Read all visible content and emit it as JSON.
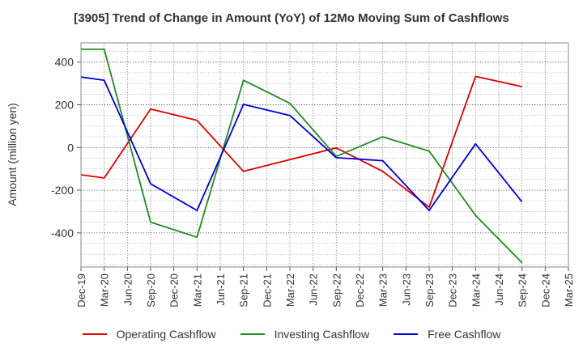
{
  "chart_data": {
    "type": "line",
    "title": "[3905]  Trend of Change in Amount (YoY) of 12Mo Moving Sum of Cashflows",
    "xlabel": "",
    "ylabel": "Amount (million yen)",
    "categories": [
      "Dec-19",
      "Mar-20",
      "Jun-20",
      "Sep-20",
      "Dec-20",
      "Mar-21",
      "Jun-21",
      "Sep-21",
      "Dec-21",
      "Mar-22",
      "Jun-22",
      "Sep-22",
      "Dec-22",
      "Mar-23",
      "Jun-23",
      "Sep-23",
      "Dec-23",
      "Mar-24",
      "Jun-24",
      "Sep-24",
      "Dec-24",
      "Mar-25"
    ],
    "yticks": [
      400,
      200,
      0,
      -200,
      -400
    ],
    "ylim": [
      -560,
      490
    ],
    "grid": true,
    "legend_position": "bottom",
    "series": [
      {
        "name": "Operating Cashflow",
        "color": "#e00000",
        "points": [
          [
            0,
            -128
          ],
          [
            1,
            -143
          ],
          [
            3,
            180
          ],
          [
            5,
            127
          ],
          [
            7,
            -112
          ],
          [
            11,
            -2
          ],
          [
            13,
            -112
          ],
          [
            15,
            -280
          ],
          [
            17,
            333
          ],
          [
            19,
            285
          ]
        ]
      },
      {
        "name": "Investing Cashflow",
        "color": "#228b22",
        "points": [
          [
            0,
            460
          ],
          [
            1,
            460
          ],
          [
            3,
            -350
          ],
          [
            5,
            -420
          ],
          [
            7,
            315
          ],
          [
            9,
            207
          ],
          [
            11,
            -42
          ],
          [
            13,
            50
          ],
          [
            15,
            -17
          ],
          [
            17,
            -318
          ],
          [
            19,
            -540
          ]
        ]
      },
      {
        "name": "Free Cashflow",
        "color": "#0000dd",
        "points": [
          [
            0,
            330
          ],
          [
            1,
            315
          ],
          [
            3,
            -170
          ],
          [
            5,
            -295
          ],
          [
            7,
            202
          ],
          [
            9,
            150
          ],
          [
            11,
            -48
          ],
          [
            13,
            -62
          ],
          [
            15,
            -295
          ],
          [
            17,
            17
          ],
          [
            19,
            -255
          ]
        ]
      }
    ]
  }
}
